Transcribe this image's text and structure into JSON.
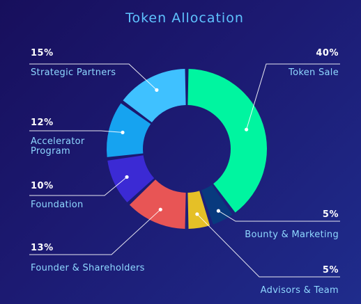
{
  "chart_data": {
    "type": "pie",
    "title": "Token Allocation",
    "series": [
      {
        "name": "Token Sale",
        "value": 40,
        "label": "40%",
        "color": "#00f5a0"
      },
      {
        "name": "Bounty & Marketing",
        "value": 5,
        "label": "5%",
        "color": "#083a7e"
      },
      {
        "name": "Advisors & Team",
        "value": 5,
        "label": "5%",
        "color": "#e5c027"
      },
      {
        "name": "Founder & Shareholders",
        "value": 13,
        "label": "13%",
        "color": "#e85555"
      },
      {
        "name": "Foundation",
        "value": 10,
        "label": "10%",
        "color": "#3b2ad4"
      },
      {
        "name": "Accelerator Program",
        "value": 12,
        "label": "12%",
        "color": "#16a3f0"
      },
      {
        "name": "Strategic Partners",
        "value": 15,
        "label": "15%",
        "color": "#3fc1ff"
      }
    ],
    "legend": "callout-labels"
  },
  "labels": {
    "strategic_lines": [
      "Strategic Partners"
    ],
    "accelerator_lines": [
      "Accelerator",
      "Program"
    ],
    "foundation_lines": [
      "Foundation"
    ],
    "founder_lines": [
      "Founder & Shareholders"
    ],
    "token_sale_lines": [
      "Token Sale"
    ],
    "bounty_lines": [
      "Bounty & Marketing"
    ],
    "advisors_lines": [
      "Advisors & Team"
    ]
  }
}
